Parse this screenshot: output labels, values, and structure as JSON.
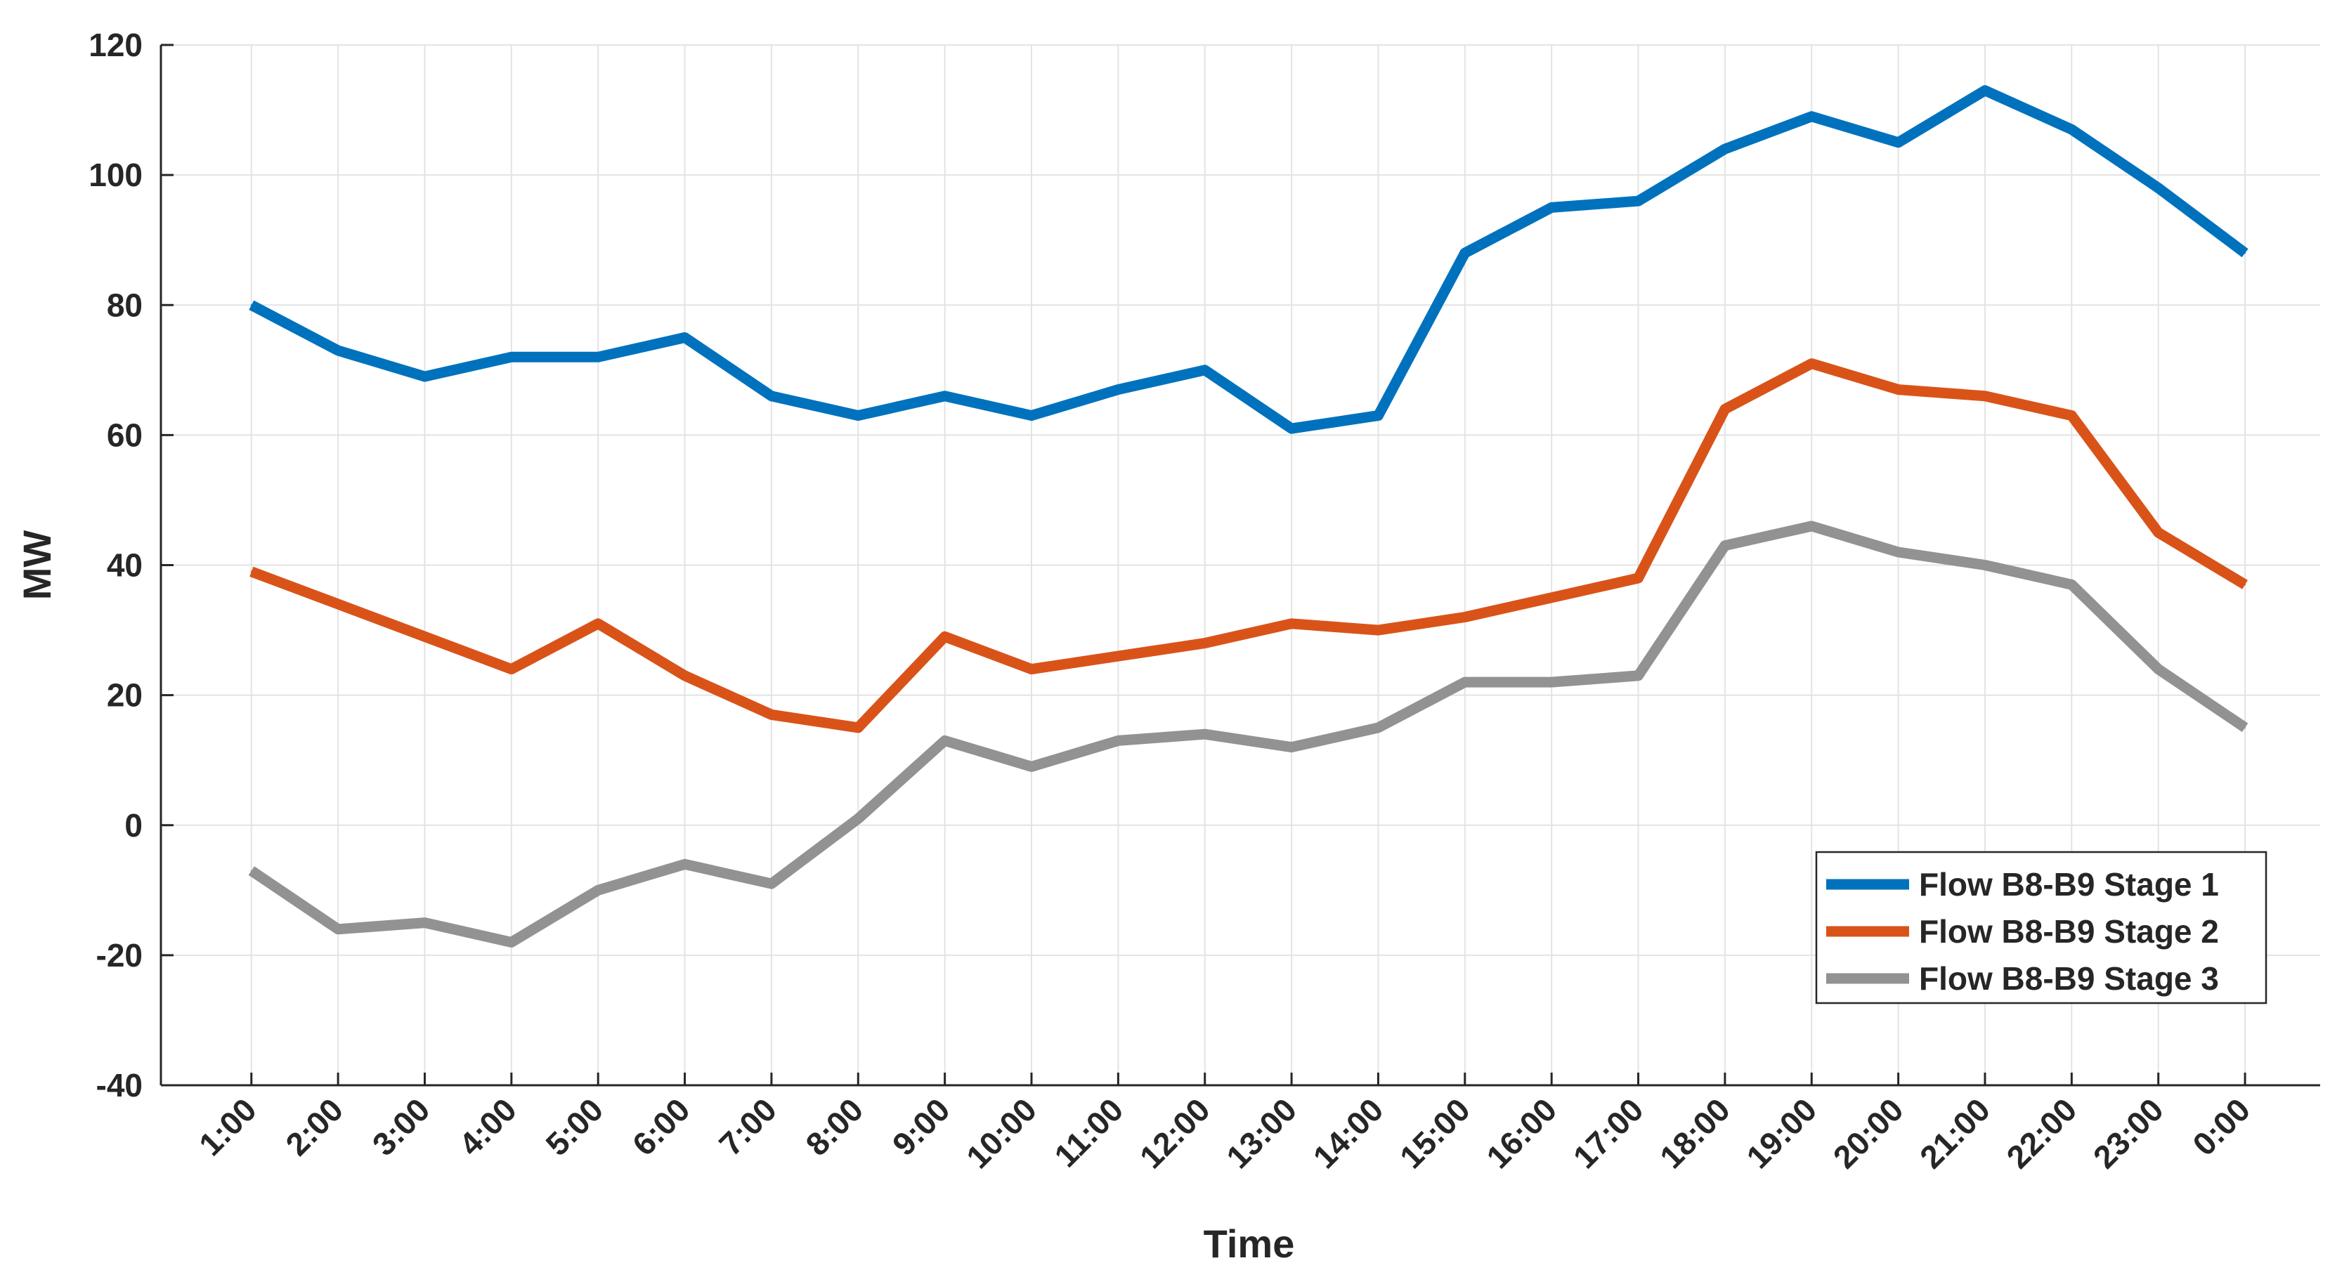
{
  "chart_data": {
    "type": "line",
    "title": "",
    "xlabel": "Time",
    "ylabel": "MW",
    "categories": [
      "1:00",
      "2:00",
      "3:00",
      "4:00",
      "5:00",
      "6:00",
      "7:00",
      "8:00",
      "9:00",
      "10:00",
      "11:00",
      "12:00",
      "13:00",
      "14:00",
      "15:00",
      "16:00",
      "17:00",
      "18:00",
      "19:00",
      "20:00",
      "21:00",
      "22:00",
      "23:00",
      "0:00"
    ],
    "ylim": [
      -40,
      120
    ],
    "yticks": [
      -40,
      -20,
      0,
      20,
      40,
      60,
      80,
      100,
      120
    ],
    "grid": true,
    "legend_position": "bottom-right",
    "series": [
      {
        "name": "Flow B8-B9 Stage 1",
        "color": "#0072BD",
        "values": [
          80,
          73,
          69,
          72,
          72,
          75,
          66,
          63,
          66,
          63,
          67,
          70,
          61,
          63,
          88,
          95,
          96,
          104,
          109,
          105,
          113,
          107,
          98,
          88
        ]
      },
      {
        "name": "Flow B8-B9 Stage 2",
        "color": "#D95319",
        "values": [
          39,
          34,
          29,
          24,
          31,
          23,
          17,
          15,
          29,
          24,
          26,
          28,
          31,
          30,
          32,
          35,
          38,
          64,
          71,
          67,
          66,
          63,
          45,
          37
        ]
      },
      {
        "name": "Flow B8-B9 Stage 3",
        "color": "#929292",
        "values": [
          -7,
          -16,
          -15,
          -18,
          -10,
          -6,
          -9,
          1,
          13,
          9,
          13,
          14,
          12,
          15,
          22,
          22,
          23,
          43,
          46,
          42,
          40,
          37,
          24,
          15
        ]
      }
    ]
  }
}
